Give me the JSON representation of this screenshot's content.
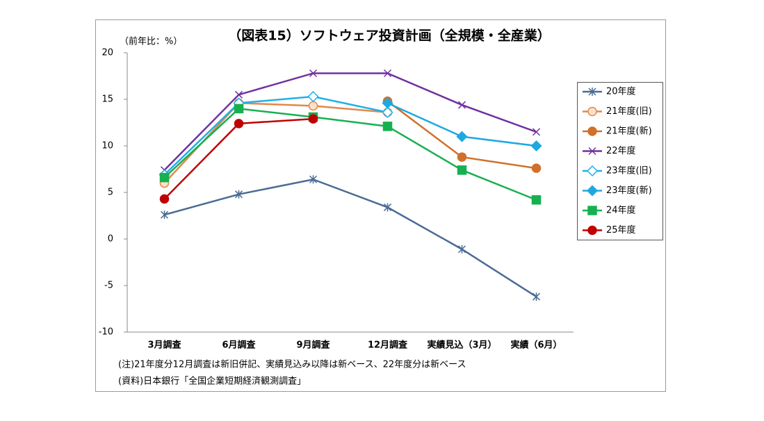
{
  "chart_data": {
    "type": "line",
    "title": "（図表15）ソフトウェア投資計画（全規模・全産業）",
    "y_axis_label": "（前年比：%）",
    "categories": [
      "3月調査",
      "6月調査",
      "9月調査",
      "12月調査",
      "実績見込（3月）",
      "実績（6月）"
    ],
    "series": [
      {
        "name": "20年度",
        "color": "#4a6b94",
        "marker": "star",
        "values": [
          2.6,
          4.8,
          6.4,
          3.4,
          -1.1,
          -6.2
        ]
      },
      {
        "name": "21年度(旧)",
        "color": "#e0894a",
        "marker": "circle-open",
        "values": [
          6.0,
          14.6,
          14.3,
          13.6,
          null,
          null
        ]
      },
      {
        "name": "21年度(新)",
        "color": "#d0702a",
        "marker": "circle",
        "values": [
          null,
          null,
          null,
          14.8,
          8.8,
          7.6
        ]
      },
      {
        "name": "22年度",
        "color": "#7030a0",
        "marker": "x",
        "values": [
          7.4,
          15.5,
          17.8,
          17.8,
          14.4,
          11.5
        ]
      },
      {
        "name": "23年度(旧)",
        "color": "#1fb0e8",
        "marker": "diamond-open",
        "values": [
          6.9,
          14.6,
          15.3,
          13.6,
          null,
          null
        ]
      },
      {
        "name": "23年度(新)",
        "color": "#1fa8e0",
        "marker": "diamond",
        "values": [
          null,
          null,
          null,
          14.6,
          11.0,
          10.0
        ]
      },
      {
        "name": "24年度",
        "color": "#16b050",
        "marker": "square",
        "values": [
          6.6,
          14.0,
          13.1,
          12.1,
          7.4,
          4.2
        ]
      },
      {
        "name": "25年度",
        "color": "#c00000",
        "marker": "circle",
        "values": [
          4.3,
          12.4,
          12.9,
          null,
          null,
          null
        ]
      }
    ],
    "ylim": [
      -10,
      20
    ],
    "yticks": [
      -10,
      -5,
      0,
      5,
      10,
      15,
      20
    ],
    "grid": false,
    "legend": "right",
    "notes": [
      "(注)21年度分12月調査は新旧併記、実績見込み以降は新ベース、22年度分は新ベース",
      "(資料)日本銀行「全国企業短期経済観測調査」"
    ]
  }
}
